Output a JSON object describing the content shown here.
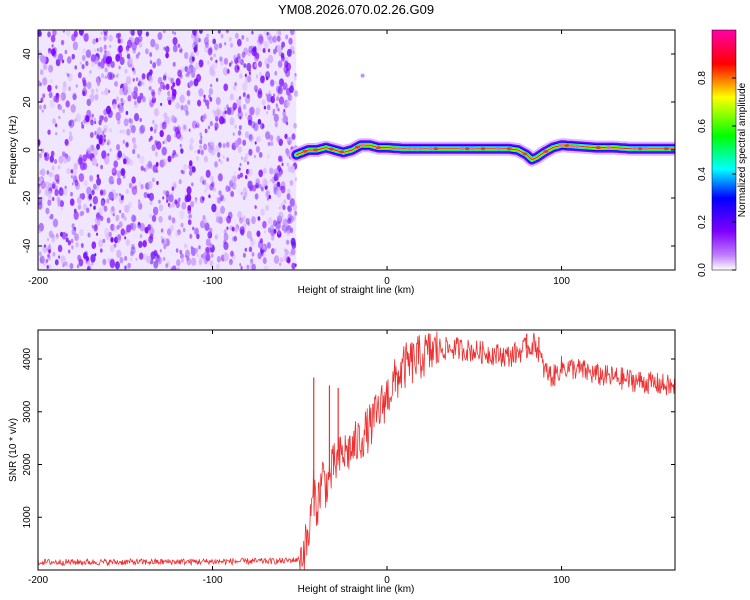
{
  "chart_data": [
    {
      "type": "heatmap",
      "title": "YM08.2026.070.02.26.G09",
      "xlabel": "Height of straight line (km)",
      "ylabel": "Frequency (Hz)",
      "xlim": [
        -200,
        165
      ],
      "ylim": [
        -50,
        50
      ],
      "x_ticks": [
        -200,
        -100,
        0,
        100
      ],
      "y_ticks": [
        -40,
        -20,
        0,
        20,
        40
      ],
      "noise_region_x": [
        -200,
        -52
      ],
      "signal_track": {
        "x": [
          -52,
          -45,
          -40,
          -35,
          -30,
          -25,
          -20,
          -15,
          -10,
          -5,
          0,
          10,
          20,
          30,
          40,
          50,
          60,
          70,
          75,
          80,
          83,
          86,
          90,
          95,
          100,
          110,
          120,
          130,
          140,
          150,
          165
        ],
        "freq": [
          -2,
          0,
          0,
          1,
          0,
          -1,
          0,
          2,
          2,
          1,
          1,
          0.5,
          0.5,
          0.5,
          0.5,
          0.5,
          0.5,
          0.5,
          0,
          -2,
          -4,
          -3,
          -1,
          1,
          2,
          1.5,
          1,
          1,
          0.5,
          0.5,
          0.5
        ]
      },
      "colorbar": {
        "label": "Normalized spectral amplitude",
        "range": [
          0,
          1
        ],
        "ticks": [
          0.0,
          0.2,
          0.4,
          0.6,
          0.8
        ],
        "tick_labels": [
          "0.0",
          "0.2",
          "0.4",
          "0.6",
          "0.8"
        ],
        "colors": [
          "#ffffff",
          "#8000ff",
          "#0000ff",
          "#00ffff",
          "#00ff00",
          "#ffff00",
          "#ff0000",
          "#ff00ff"
        ]
      }
    },
    {
      "type": "line",
      "xlabel": "Height of straight line (km)",
      "ylabel": "SNR (10 * v/v)",
      "xlim": [
        -200,
        165
      ],
      "ylim": [
        0,
        4550
      ],
      "x_ticks": [
        -200,
        -100,
        0,
        100
      ],
      "y_ticks": [
        1000,
        2000,
        3000,
        4000
      ],
      "color": "#ee3030",
      "series": [
        {
          "name": "SNR",
          "x": [
            -200,
            -150,
            -100,
            -60,
            -50,
            -45,
            -42,
            -40,
            -37,
            -35,
            -30,
            -25,
            -20,
            -15,
            -10,
            -5,
            0,
            5,
            10,
            20,
            30,
            40,
            50,
            60,
            70,
            80,
            85,
            90,
            95,
            100,
            110,
            120,
            130,
            140,
            150,
            160,
            165
          ],
          "values": [
            150,
            150,
            160,
            170,
            200,
            600,
            1500,
            1200,
            1800,
            1600,
            2000,
            2200,
            2300,
            2500,
            2700,
            3000,
            3300,
            3600,
            3850,
            4050,
            4200,
            4200,
            4150,
            4100,
            4050,
            4200,
            4300,
            3800,
            3650,
            3850,
            3800,
            3700,
            3650,
            3600,
            3550,
            3500,
            3450
          ],
          "spikes": [
            {
              "x": -42,
              "value": 3650
            },
            {
              "x": -33,
              "value": 3500
            },
            {
              "x": -28,
              "value": 3450
            },
            {
              "x": 80,
              "value": 4480
            },
            {
              "x": 87,
              "value": 4420
            }
          ]
        }
      ]
    }
  ]
}
